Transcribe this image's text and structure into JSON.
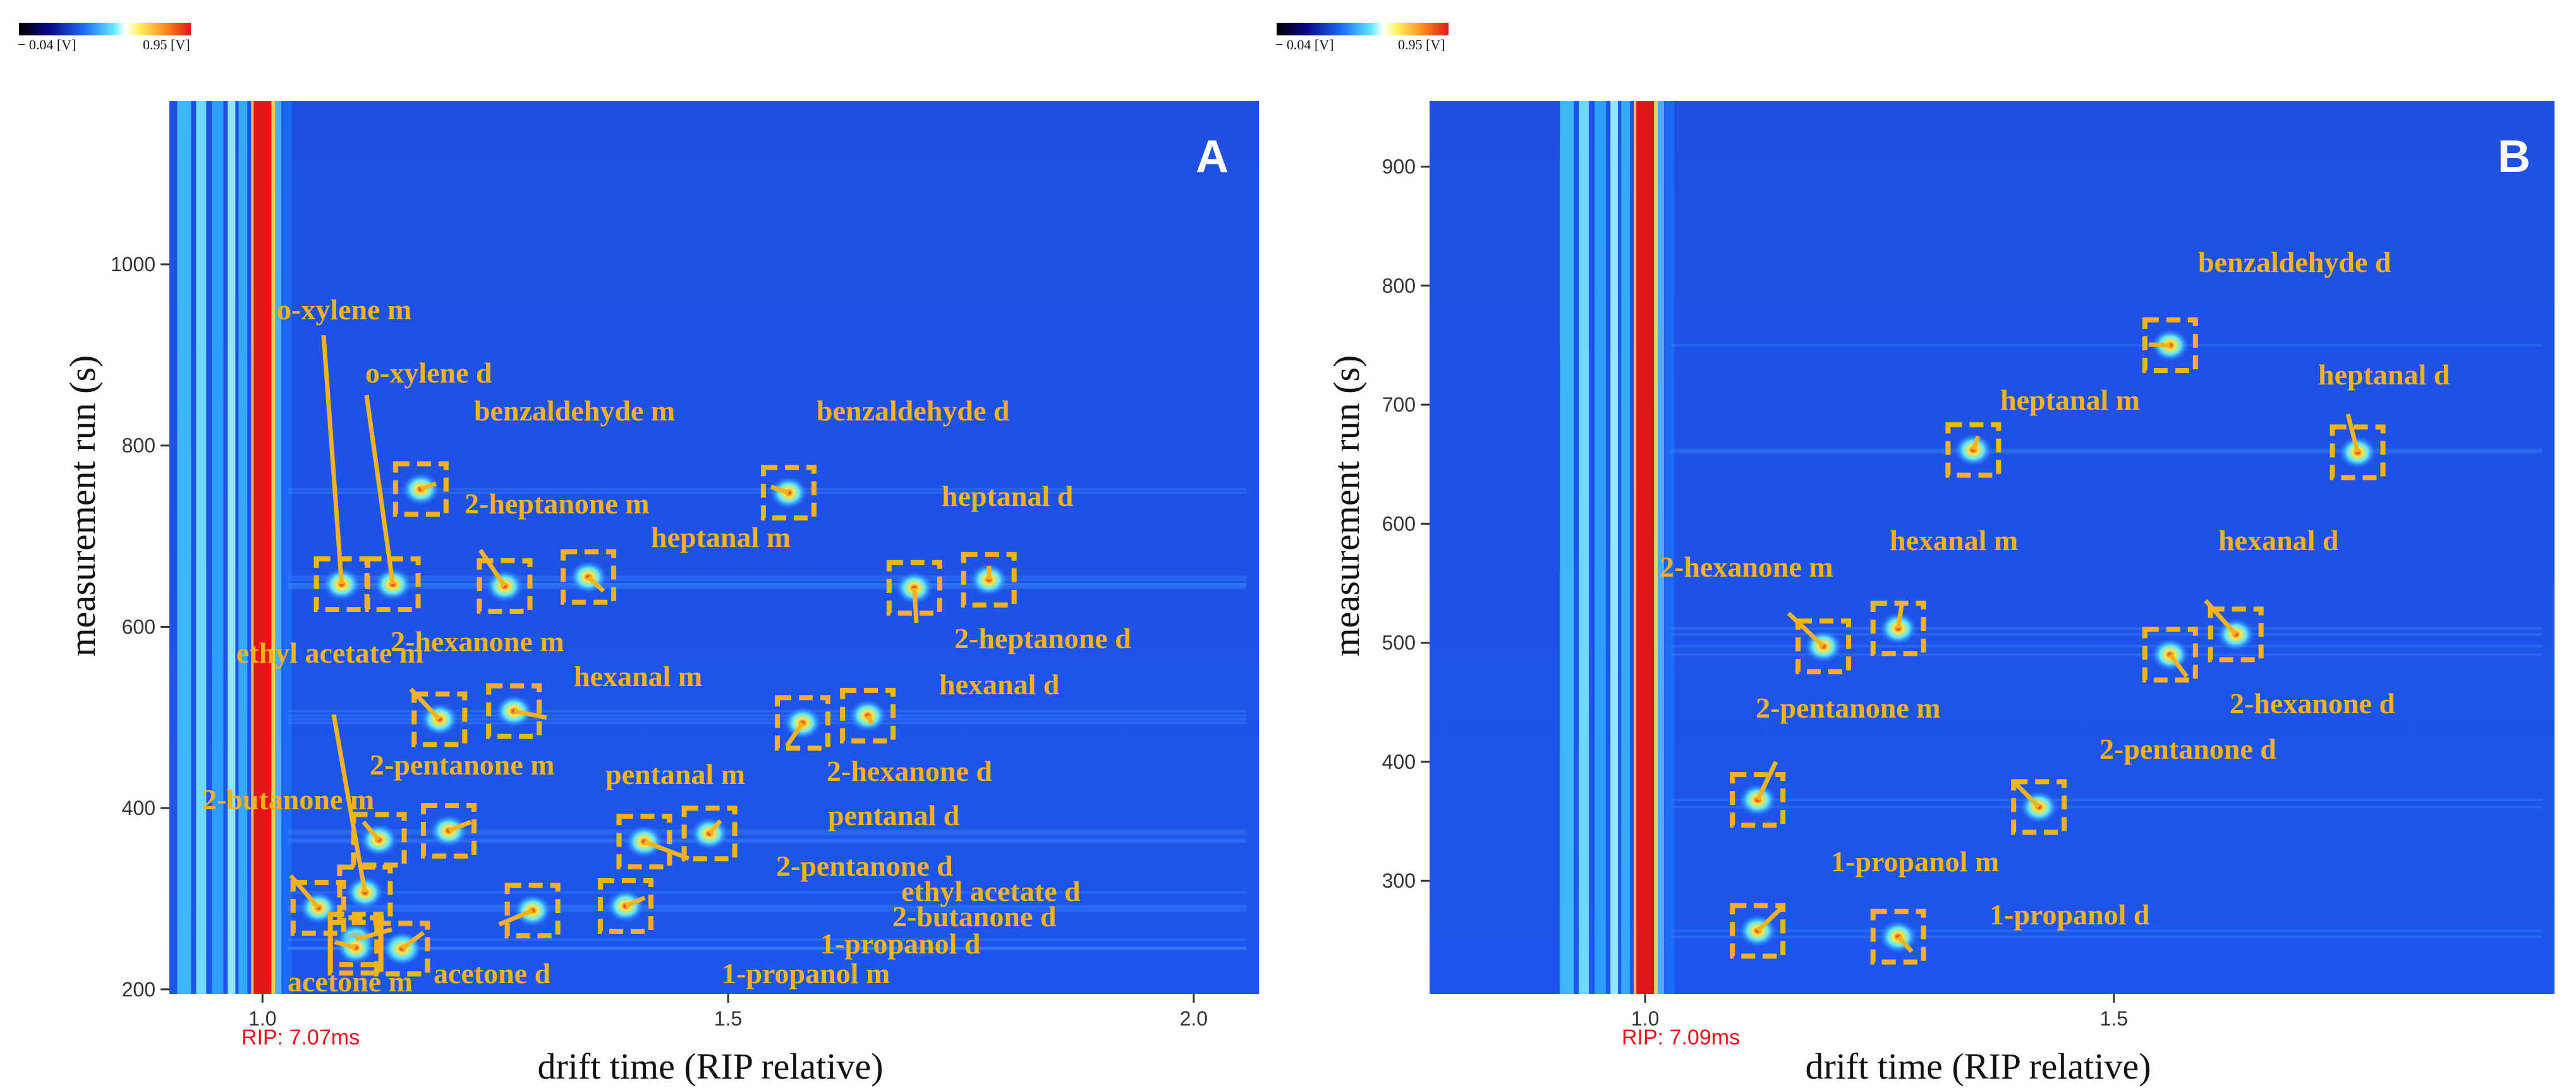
{
  "chart_data": [
    {
      "type": "heatmap",
      "panel": "A",
      "xlabel": "drift time (RIP relative)",
      "ylabel": "measurement run (s)",
      "xlim": [
        0.9,
        2.07
      ],
      "ylim": [
        195,
        1180
      ],
      "xticks": [
        1.0,
        1.5,
        2.0
      ],
      "xtick_labels": [
        "1.0",
        "1.5",
        "2.0"
      ],
      "yticks": [
        200,
        400,
        600,
        800,
        1000
      ],
      "ytick_labels": [
        "200",
        "400",
        "600",
        "800",
        "1000"
      ],
      "rip_label": "RIP: 7.07ms",
      "colorbar": {
        "min_label": "− 0.04 [V]",
        "max_label": "0.95 [V]"
      },
      "peaks": [
        {
          "label": "o-xylene m",
          "x": 1.085,
          "y": 647
        },
        {
          "label": "o-xylene d",
          "x": 1.14,
          "y": 647
        },
        {
          "label": "benzaldehyde m",
          "x": 1.17,
          "y": 752
        },
        {
          "label": "2-heptanone m",
          "x": 1.26,
          "y": 645
        },
        {
          "label": "heptanal m",
          "x": 1.35,
          "y": 655
        },
        {
          "label": "benzaldehyde d",
          "x": 1.565,
          "y": 748
        },
        {
          "label": "heptanal d",
          "x": 1.78,
          "y": 652
        },
        {
          "label": "2-heptanone d",
          "x": 1.7,
          "y": 643
        },
        {
          "label": "2-hexanone m",
          "x": 1.19,
          "y": 498
        },
        {
          "label": "hexanal m",
          "x": 1.27,
          "y": 507
        },
        {
          "label": "hexanal d",
          "x": 1.65,
          "y": 502
        },
        {
          "label": "2-hexanone d",
          "x": 1.58,
          "y": 494
        },
        {
          "label": "ethyl acetate m",
          "x": 1.11,
          "y": 307
        },
        {
          "label": "2-butanone m",
          "x": 1.06,
          "y": 290
        },
        {
          "label": "2-pentanone m",
          "x": 1.125,
          "y": 365
        },
        {
          "label": "pentanal m",
          "x": 1.2,
          "y": 375
        },
        {
          "label": "pentanal d",
          "x": 1.48,
          "y": 372
        },
        {
          "label": "2-pentanone d",
          "x": 1.41,
          "y": 363
        },
        {
          "label": "ethyl acetate d",
          "x": 1.39,
          "y": 292
        },
        {
          "label": "2-butanone d",
          "x": 1.29,
          "y": 287
        },
        {
          "label": "1-propanol d",
          "x": 1.15,
          "y": 245
        },
        {
          "label": "1-propanol m",
          "x": 1.1,
          "y": 255
        },
        {
          "label": "acetone m",
          "x": 1.1,
          "y": 246
        },
        {
          "label": "acetone d",
          "x": 1.15,
          "y": 245
        }
      ]
    },
    {
      "type": "heatmap",
      "panel": "B",
      "xlabel": "drift time (RIP relative)",
      "ylabel": "measurement run (s)",
      "xlim": [
        0.77,
        1.97
      ],
      "ylim": [
        205,
        955
      ],
      "xticks": [
        1.0,
        1.5
      ],
      "xtick_labels": [
        "1.0",
        "1.5"
      ],
      "yticks": [
        300,
        400,
        500,
        600,
        700,
        800,
        900
      ],
      "ytick_labels": [
        "300",
        "400",
        "500",
        "600",
        "700",
        "800",
        "900"
      ],
      "rip_label": "RIP: 7.09ms",
      "colorbar": {
        "min_label": "− 0.04 [V]",
        "max_label": "0.95 [V]"
      },
      "peaks": [
        {
          "label": "benzaldehyde d",
          "x": 1.56,
          "y": 750
        },
        {
          "label": "heptanal m",
          "x": 1.35,
          "y": 662
        },
        {
          "label": "heptanal d",
          "x": 1.76,
          "y": 660
        },
        {
          "label": "2-hexanone m",
          "x": 1.19,
          "y": 497
        },
        {
          "label": "hexanal m",
          "x": 1.27,
          "y": 512
        },
        {
          "label": "hexanal d",
          "x": 1.63,
          "y": 507
        },
        {
          "label": "2-hexanone d",
          "x": 1.56,
          "y": 490
        },
        {
          "label": "2-pentanone m",
          "x": 1.12,
          "y": 368
        },
        {
          "label": "2-pentanone d",
          "x": 1.42,
          "y": 362
        },
        {
          "label": "1-propanol m",
          "x": 1.12,
          "y": 258
        },
        {
          "label": "1-propanol d",
          "x": 1.27,
          "y": 253
        }
      ]
    }
  ]
}
